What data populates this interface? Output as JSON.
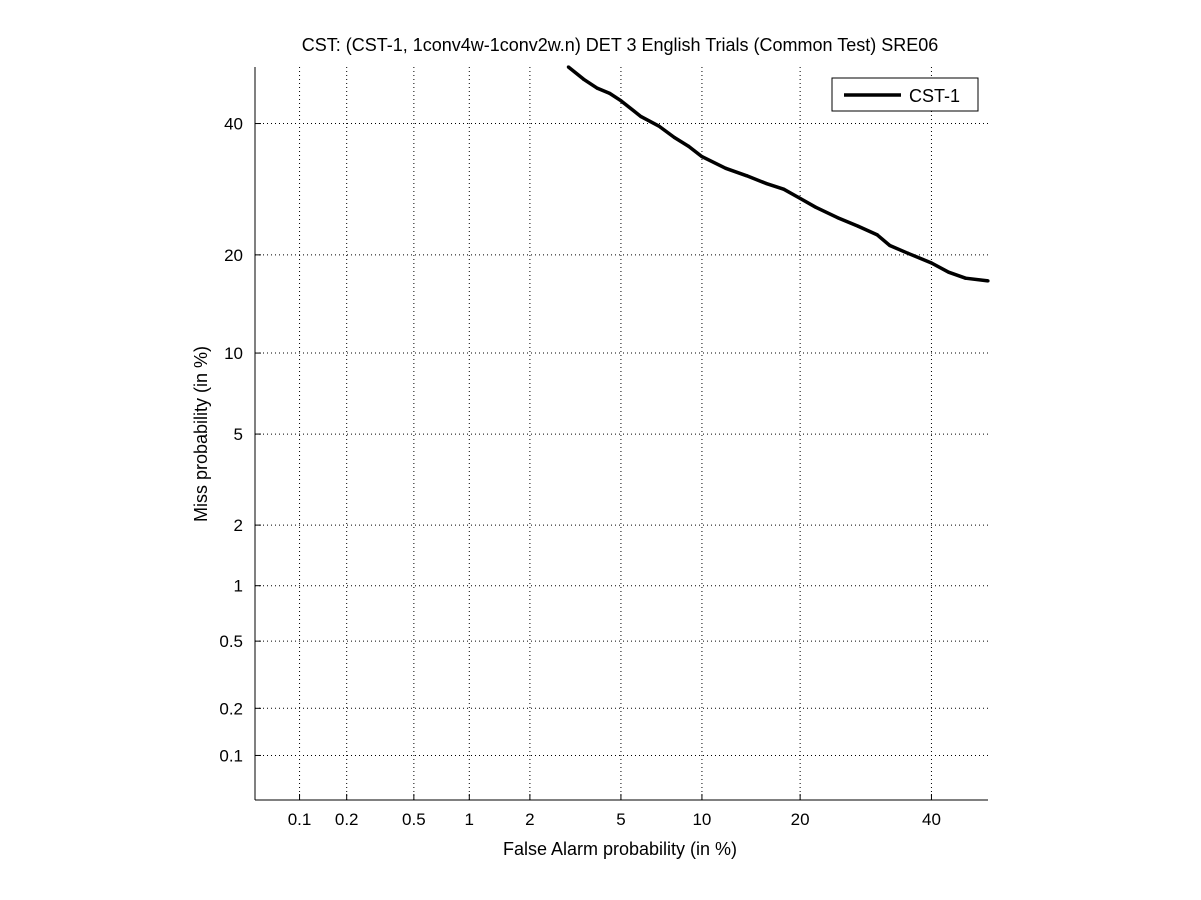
{
  "chart_data": {
    "type": "line",
    "title": "CST: (CST-1, 1conv4w-1conv2w.n) DET 3 English Trials (Common Test) SRE06",
    "xlabel": "False Alarm probability (in %)",
    "ylabel": "Miss probability (in %)",
    "x_scale": "probit",
    "y_scale": "probit",
    "xlim": [
      0.05,
      50
    ],
    "ylim": [
      0.05,
      50
    ],
    "x_ticks": [
      0.1,
      0.2,
      0.5,
      1,
      2,
      5,
      10,
      20,
      40
    ],
    "x_tick_labels": [
      "0.1",
      "0.2",
      "0.5",
      "1",
      "2",
      "5",
      "10",
      "20",
      "40"
    ],
    "y_ticks": [
      0.1,
      0.2,
      0.5,
      1,
      2,
      5,
      10,
      20,
      40
    ],
    "y_tick_labels": [
      "0.1",
      "0.2",
      "0.5",
      "1",
      "2",
      "5",
      "10",
      "20",
      "40"
    ],
    "grid": true,
    "legend_position": "top-right",
    "series": [
      {
        "name": "CST-1",
        "color": "#000000",
        "x": [
          3.0,
          3.5,
          4.0,
          4.5,
          5.0,
          6.0,
          7.0,
          8.0,
          9.0,
          10.0,
          12.0,
          14.0,
          16.0,
          18.0,
          20.0,
          22.0,
          25.0,
          28.0,
          31.0,
          33.0,
          36.0,
          40.0,
          43.0,
          46.0,
          50.0
        ],
        "y": [
          50.0,
          47.8,
          46.2,
          45.3,
          44.0,
          41.2,
          39.6,
          37.6,
          36.1,
          34.4,
          32.5,
          31.3,
          30.1,
          29.2,
          27.8,
          26.5,
          25.0,
          23.8,
          22.6,
          21.2,
          20.2,
          19.0,
          17.9,
          17.2,
          16.9
        ]
      }
    ]
  }
}
